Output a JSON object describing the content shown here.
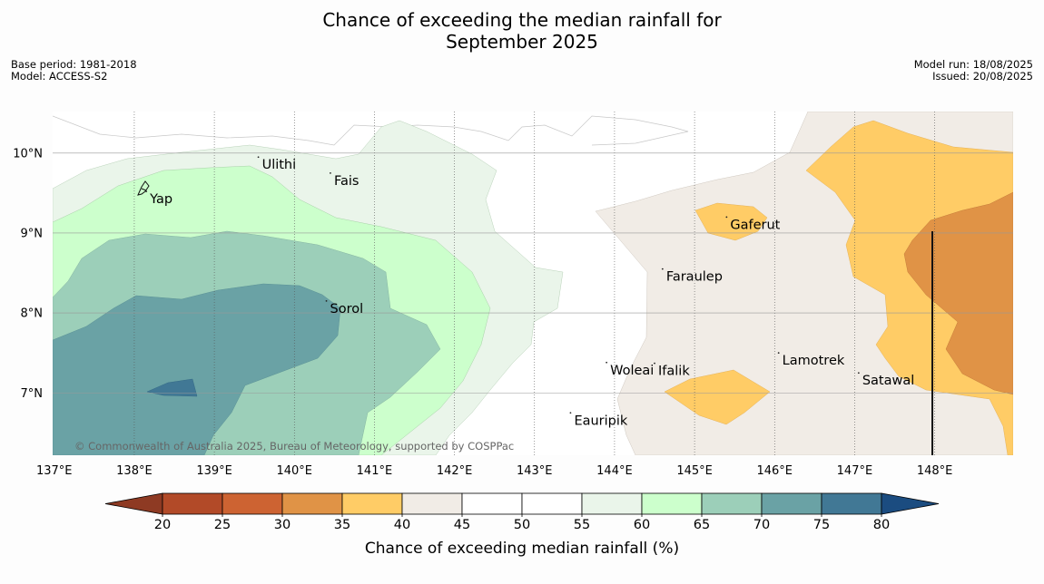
{
  "header": {
    "title_line1": "Chance of exceeding the median rainfall for",
    "title_line2": "September 2025",
    "base_period": "Base period: 1981-2018",
    "model": "Model: ACCESS-S2",
    "model_run": "Model run: 18/08/2025",
    "issued": "Issued: 20/08/2025"
  },
  "map": {
    "lon_labels": [
      "137°E",
      "138°E",
      "139°E",
      "140°E",
      "141°E",
      "142°E",
      "143°E",
      "144°E",
      "145°E",
      "146°E",
      "147°E",
      "148°E"
    ],
    "lat_labels": [
      "10°N",
      "9°N",
      "8°N",
      "7°N"
    ],
    "places": [
      {
        "name": "Ulithi",
        "lon": 139.55,
        "lat": 9.95
      },
      {
        "name": "Fais",
        "lon": 140.45,
        "lat": 9.75
      },
      {
        "name": "Yap",
        "lon": 138.15,
        "lat": 9.52
      },
      {
        "name": "Gaferut",
        "lon": 145.4,
        "lat": 9.2
      },
      {
        "name": "Faraulep",
        "lon": 144.6,
        "lat": 8.55
      },
      {
        "name": "Sorol",
        "lon": 140.4,
        "lat": 8.15
      },
      {
        "name": "Lamotrek",
        "lon": 146.05,
        "lat": 7.5
      },
      {
        "name": "Woleai",
        "lon": 143.9,
        "lat": 7.38
      },
      {
        "name": "Ifalik",
        "lon": 144.5,
        "lat": 7.37
      },
      {
        "name": "Satawal",
        "lon": 147.05,
        "lat": 7.25
      },
      {
        "name": "Eauripik",
        "lon": 143.45,
        "lat": 6.75
      }
    ],
    "copyright": "© Commonwealth of Australia 2025, Bureau of Meteorology, supported by COSPPac"
  },
  "colorbar": {
    "ticks": [
      "20",
      "25",
      "30",
      "35",
      "40",
      "45",
      "50",
      "55",
      "60",
      "65",
      "70",
      "75",
      "80"
    ],
    "colors": [
      "#8e3a23",
      "#b24a28",
      "#cd6332",
      "#e09346",
      "#ffcc66",
      "#f1ece6",
      "#ffffff",
      "#ffffff",
      "#eaf5ea",
      "#ccffcc",
      "#9ccfb9",
      "#6aa2a5",
      "#417895",
      "#1b4c80"
    ],
    "label": "Chance of exceeding median rainfall (%)"
  },
  "legend_colors": {
    "c25_30": "#cd6332",
    "c30_35": "#e09346",
    "c35_40": "#ffcc66",
    "c40_45": "#f1ece6",
    "c55_60": "#eaf5ea",
    "c60_65": "#ccffcc",
    "c65_70": "#9ccfb9",
    "c70_75": "#6aa2a5",
    "c75_80": "#417895"
  }
}
